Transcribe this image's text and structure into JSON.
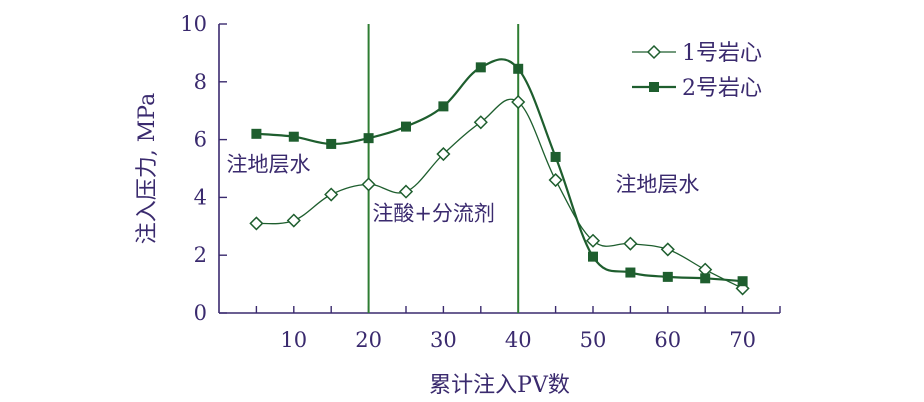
{
  "chart_data": {
    "type": "line",
    "xlabel": "累计注入PV数",
    "ylabel": "注入压力, MPa",
    "xlim": [
      0,
      75
    ],
    "ylim": [
      0,
      10
    ],
    "xticks": [
      10,
      20,
      30,
      40,
      50,
      60,
      70
    ],
    "yticks": [
      0,
      2,
      4,
      6,
      8,
      10
    ],
    "grid": false,
    "legend_position": "top-right",
    "vlines": [
      20,
      40
    ],
    "annotations": [
      {
        "text": "注地层水",
        "x": 1,
        "y": 4.9
      },
      {
        "text": "注酸+分流剂",
        "x": 20.5,
        "y": 3.2
      },
      {
        "text": "注地层水",
        "x": 53,
        "y": 4.2
      }
    ],
    "series": [
      {
        "name": "1号岩心",
        "marker": "open-diamond",
        "color": "#1e5e2e",
        "x": [
          5,
          10,
          15,
          20,
          25,
          30,
          35,
          40,
          45,
          50,
          55,
          60,
          65,
          70
        ],
        "y": [
          3.1,
          3.2,
          4.1,
          4.45,
          4.2,
          5.5,
          6.6,
          7.3,
          4.6,
          2.5,
          2.4,
          2.2,
          1.5,
          0.85
        ]
      },
      {
        "name": "2号岩心",
        "marker": "filled-square",
        "color": "#1e5e2e",
        "x": [
          5,
          10,
          15,
          20,
          25,
          30,
          35,
          40,
          45,
          50,
          55,
          60,
          65,
          70
        ],
        "y": [
          6.2,
          6.1,
          5.85,
          6.05,
          6.45,
          7.15,
          8.5,
          8.45,
          5.4,
          1.95,
          1.4,
          1.25,
          1.2,
          1.1
        ]
      }
    ]
  }
}
